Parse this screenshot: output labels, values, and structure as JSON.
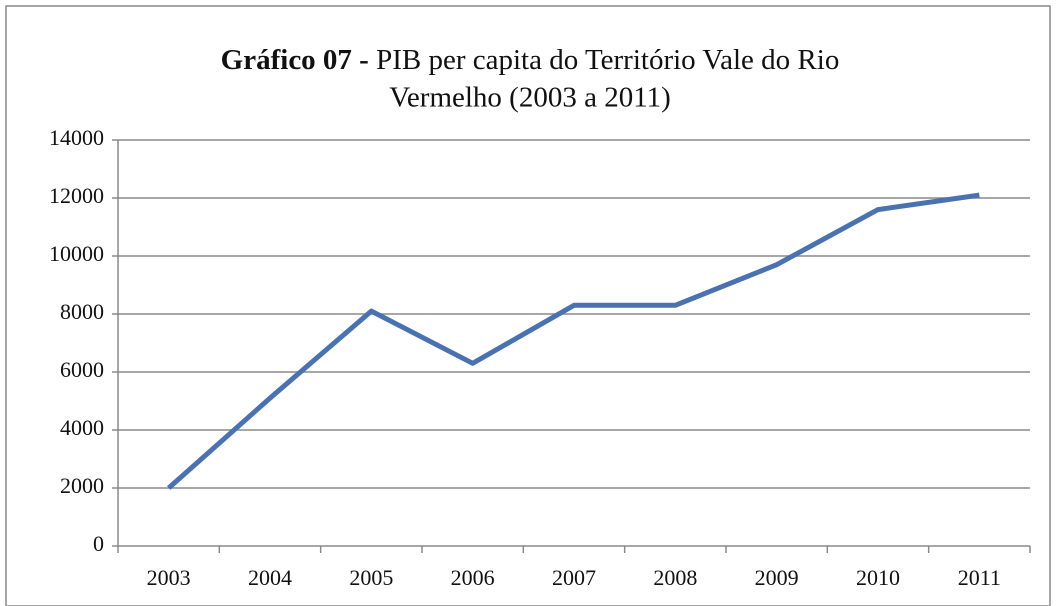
{
  "chart_data": {
    "type": "line",
    "title": {
      "bold": "Gráfico  07 -",
      "lines": [
        "PIB per capita do Território  Vale do Rio",
        "Vermelho  (2003 a 2011)"
      ]
    },
    "categories": [
      "2003",
      "2004",
      "2005",
      "2006",
      "2007",
      "2008",
      "2009",
      "2010",
      "2011"
    ],
    "series": [
      {
        "color": "#4a72b0",
        "values": [
          2000,
          5100,
          8100,
          6300,
          8300,
          8300,
          9700,
          11600,
          12100
        ]
      }
    ],
    "ylim": [
      0,
      14000
    ],
    "yticks": [
      0,
      2000,
      4000,
      6000,
      8000,
      10000,
      12000,
      14000
    ],
    "grid": true
  }
}
